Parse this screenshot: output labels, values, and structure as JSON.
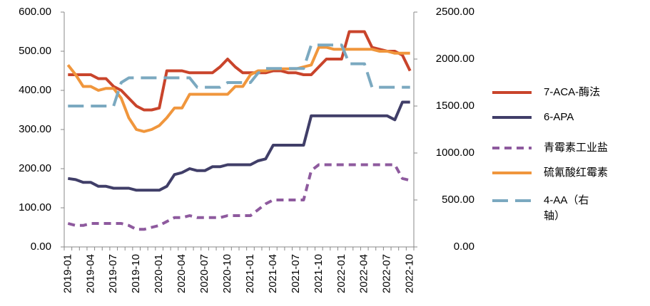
{
  "chart_data": {
    "type": "line",
    "categories": [
      "2019-01",
      null,
      null,
      "2019-04",
      null,
      null,
      "2019-07",
      null,
      null,
      "2019-10",
      null,
      null,
      "2020-01",
      null,
      null,
      "2020-04",
      null,
      null,
      "2020-07",
      null,
      null,
      "2020-10",
      null,
      null,
      "2021-01",
      null,
      null,
      "2021-04",
      null,
      null,
      "2021-07",
      null,
      null,
      "2021-10",
      null,
      null,
      "2022-01",
      null,
      null,
      "2022-04",
      null,
      null,
      "2022-07",
      null,
      null,
      "2022-10"
    ],
    "ylim": [
      0,
      600
    ],
    "yticks": [
      {
        "value": 0,
        "label": "0.00"
      },
      {
        "value": 100,
        "label": "100.00"
      },
      {
        "value": 200,
        "label": "200.00"
      },
      {
        "value": 300,
        "label": "300.00"
      },
      {
        "value": 400,
        "label": "400.00"
      },
      {
        "value": 500,
        "label": "500.00"
      },
      {
        "value": 600,
        "label": "600.00"
      }
    ],
    "y2lim": [
      0,
      2500
    ],
    "y2ticks": [
      {
        "value": 0,
        "label": "0.00"
      },
      {
        "value": 500,
        "label": "500.00"
      },
      {
        "value": 1000,
        "label": "1000.00"
      },
      {
        "value": 1500,
        "label": "1500.00"
      },
      {
        "value": 2000,
        "label": "2000.00"
      },
      {
        "value": 2500,
        "label": "2500.00"
      }
    ],
    "grid": false,
    "legend": "right",
    "series": [
      {
        "name": "7-ACA-酶法",
        "color": "#c9442b",
        "style": "solid",
        "values": [
          440,
          440,
          440,
          440,
          430,
          430,
          410,
          400,
          380,
          360,
          350,
          350,
          355,
          450,
          450,
          450,
          445,
          445,
          445,
          445,
          460,
          480,
          460,
          445,
          445,
          445,
          445,
          450,
          450,
          445,
          445,
          440,
          440,
          460,
          480,
          480,
          480,
          550,
          550,
          550,
          510,
          505,
          500,
          500,
          490,
          450
        ]
      },
      {
        "name": "6-APA",
        "color": "#403e68",
        "style": "solid",
        "values": [
          175,
          172,
          165,
          165,
          155,
          155,
          150,
          150,
          150,
          145,
          145,
          145,
          145,
          155,
          185,
          190,
          200,
          195,
          195,
          205,
          205,
          210,
          210,
          210,
          210,
          220,
          225,
          260,
          260,
          260,
          260,
          260,
          335,
          335,
          335,
          335,
          335,
          335,
          335,
          335,
          335,
          335,
          335,
          325,
          370,
          370
        ]
      },
      {
        "name": "青霉素工业盐",
        "color": "#8e5a9e",
        "style": "dashed",
        "values": [
          60,
          55,
          55,
          60,
          60,
          60,
          60,
          60,
          55,
          45,
          45,
          50,
          55,
          65,
          75,
          75,
          80,
          75,
          75,
          75,
          75,
          80,
          80,
          80,
          80,
          95,
          110,
          120,
          120,
          120,
          120,
          120,
          195,
          210,
          210,
          210,
          210,
          210,
          210,
          210,
          210,
          210,
          210,
          210,
          175,
          170
        ]
      },
      {
        "name": "硫氰酸红霉素",
        "color": "#f0963c",
        "style": "solid",
        "values": [
          465,
          440,
          410,
          410,
          400,
          405,
          405,
          380,
          330,
          300,
          295,
          300,
          310,
          330,
          355,
          355,
          390,
          390,
          390,
          390,
          390,
          390,
          410,
          410,
          440,
          450,
          450,
          455,
          455,
          455,
          455,
          460,
          465,
          510,
          510,
          505,
          505,
          505,
          505,
          505,
          505,
          500,
          500,
          495,
          495,
          495
        ]
      },
      {
        "name": "4-AA（右轴）",
        "color": "#7ba9c0",
        "style": "dashed",
        "axis": "y2",
        "values": [
          1500,
          1500,
          1500,
          1500,
          1500,
          1500,
          1500,
          1750,
          1800,
          1800,
          1800,
          1800,
          1800,
          1800,
          1800,
          1800,
          1800,
          1700,
          1700,
          1700,
          1700,
          1750,
          1750,
          1750,
          1750,
          1850,
          1900,
          1900,
          1900,
          1900,
          1900,
          1900,
          2150,
          2150,
          2150,
          2150,
          2150,
          1950,
          1950,
          1950,
          1700,
          1700,
          1700,
          1700,
          1700,
          1700
        ]
      }
    ]
  }
}
